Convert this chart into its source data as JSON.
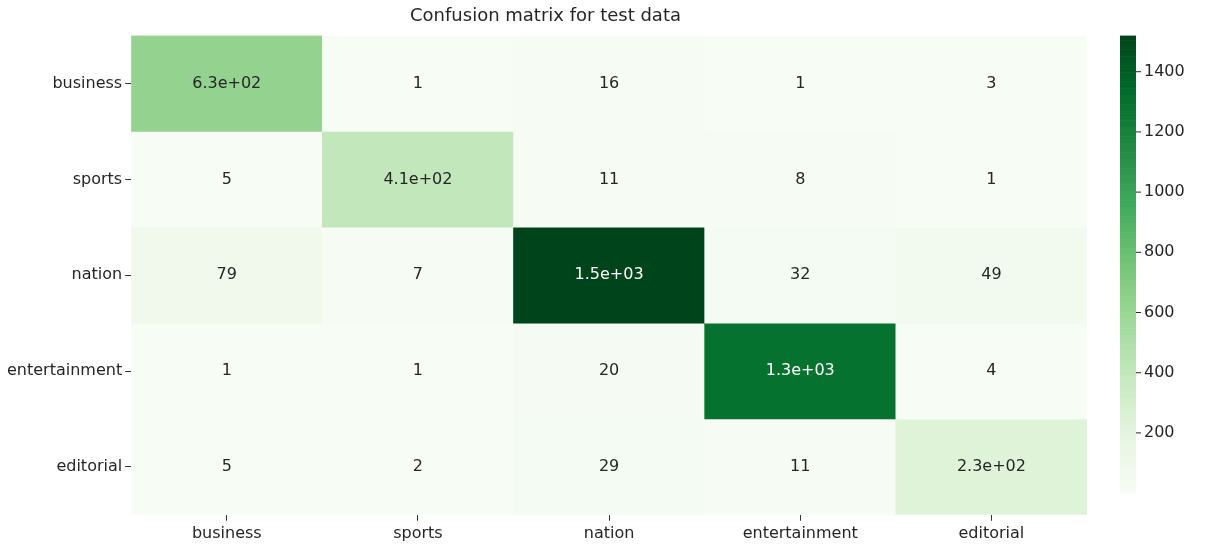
{
  "chart_data": {
    "type": "heatmap",
    "title": "Confusion matrix for test data",
    "categories": [
      "business",
      "sports",
      "nation",
      "entertainment",
      "editorial"
    ],
    "y_categories": [
      "business",
      "sports",
      "nation",
      "entertainment",
      "editorial"
    ],
    "cells": [
      [
        630,
        1,
        16,
        1,
        3
      ],
      [
        5,
        410,
        11,
        8,
        1
      ],
      [
        79,
        7,
        1520,
        32,
        49
      ],
      [
        1,
        1,
        20,
        1300,
        4
      ],
      [
        5,
        2,
        29,
        11,
        230
      ]
    ],
    "cell_labels": [
      [
        "6.3e+02",
        "1",
        "16",
        "1",
        "3"
      ],
      [
        "5",
        "4.1e+02",
        "11",
        "8",
        "1"
      ],
      [
        "79",
        "7",
        "1.5e+03",
        "32",
        "49"
      ],
      [
        "1",
        "1",
        "20",
        "1.3e+03",
        "4"
      ],
      [
        "5",
        "2",
        "29",
        "11",
        "2.3e+02"
      ]
    ],
    "clim": [
      1,
      1520
    ],
    "cticks": [
      200,
      400,
      600,
      800,
      1000,
      1200,
      1400
    ]
  }
}
